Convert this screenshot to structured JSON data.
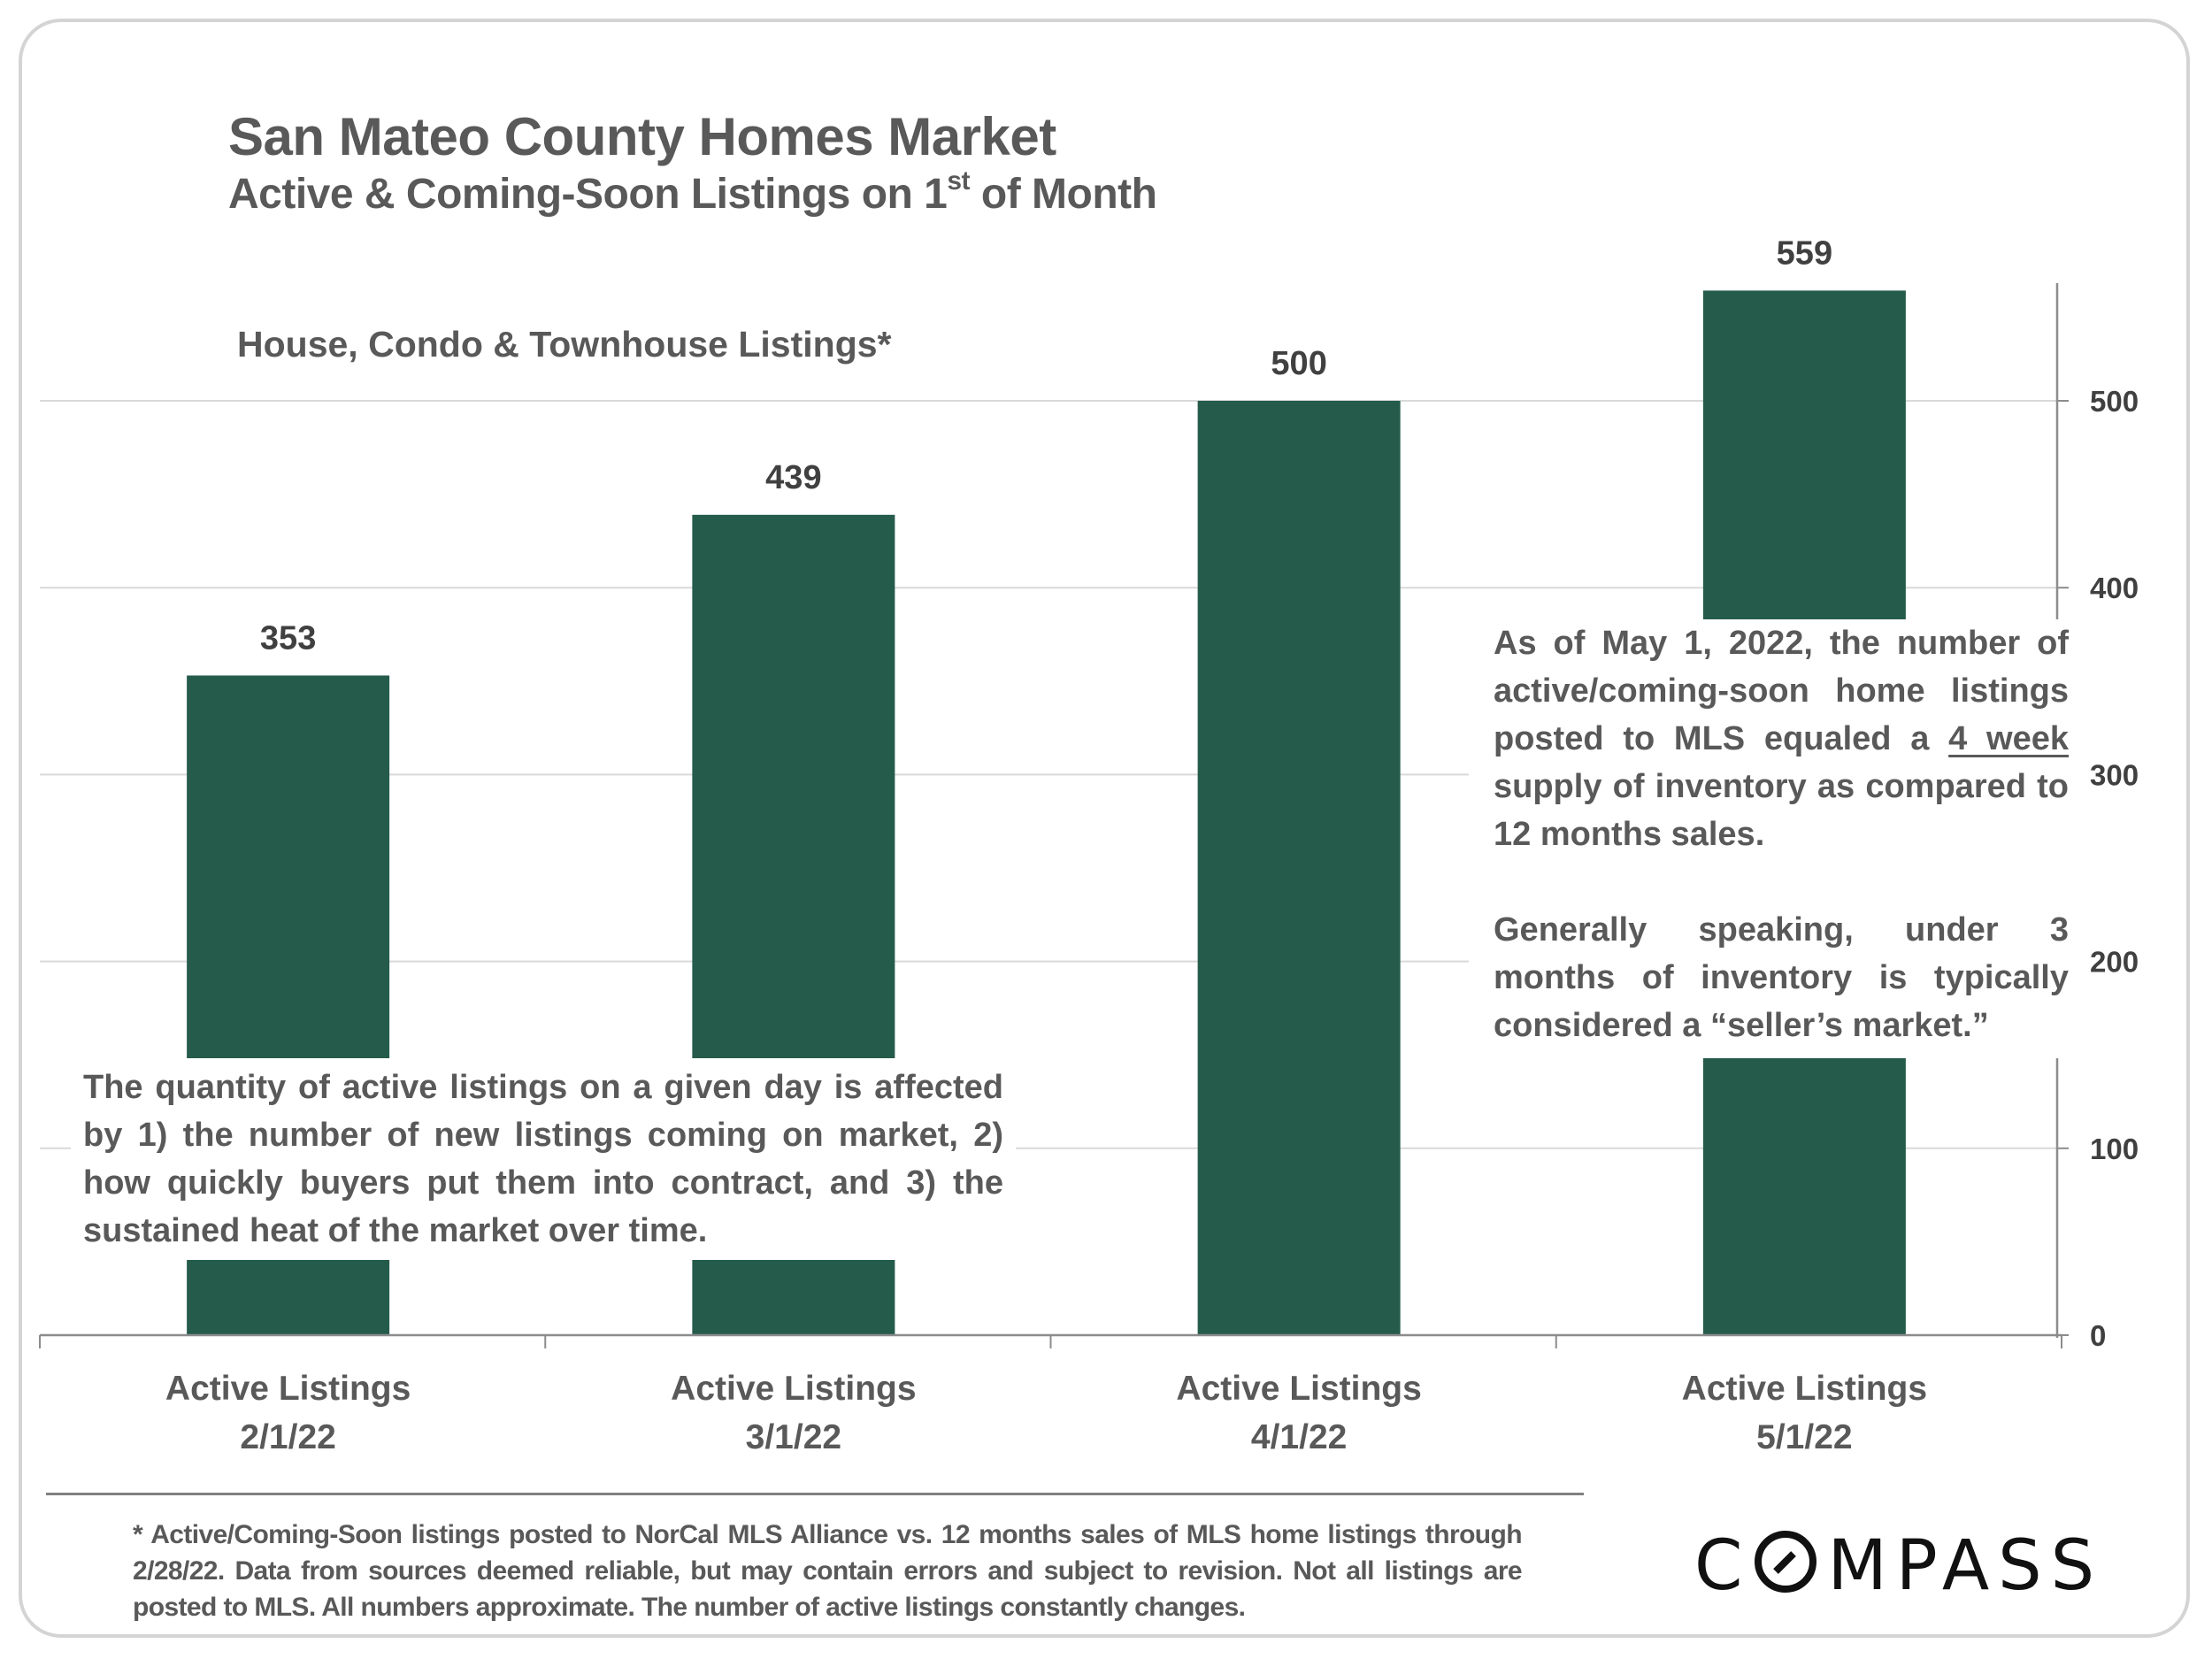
{
  "header": {
    "title": "San Mateo County Homes Market",
    "subtitle_prefix": "Active & Coming-Soon Listings on 1",
    "subtitle_sup": "st",
    "subtitle_suffix": " of Month"
  },
  "series_label": "House, Condo & Townhouse Listings*",
  "annotations": {
    "left": "The quantity of active listings on a given day is affected by 1) the number of new listings coming on market, 2) how quickly buyers put them into contract, and 3) the sustained heat of the market over time.",
    "right_p1_before": "As of May 1, 2022, the number of active/coming-soon home listings posted to MLS equaled a ",
    "right_p1_underlined": "4 week",
    "right_p1_after": " supply of inventory as compared to 12 months sales.",
    "right_p2": "Generally speaking, under 3 months of inventory is typically considered a “seller’s market.”"
  },
  "footnote": "* Active/Coming-Soon listings posted to NorCal MLS Alliance vs. 12 months sales of MLS home listings through 2/28/22.  Data from sources deemed reliable, but may contain errors and subject to revision.  Not all listings are posted to MLS. All numbers approximate. The number of active listings constantly changes.",
  "logo": {
    "text_c": "C",
    "text_rest": "MPASS"
  },
  "colors": {
    "bar": "#255b4b",
    "text": "#595959",
    "value_label": "#404040",
    "grid": "#d9d9d9",
    "axis": "#8c8c8c"
  },
  "chart_data": {
    "type": "bar",
    "title": "San Mateo County Homes Market",
    "subtitle": "Active & Coming-Soon Listings on 1st of Month",
    "series_name": "House, Condo & Townhouse Listings*",
    "categories": [
      [
        "Active Listings",
        "2/1/22"
      ],
      [
        "Active Listings",
        "3/1/22"
      ],
      [
        "Active Listings",
        "4/1/22"
      ],
      [
        "Active Listings",
        "5/1/22"
      ]
    ],
    "values": [
      353,
      439,
      500,
      559
    ],
    "data_labels": [
      "353",
      "439",
      "500",
      "559"
    ],
    "xlabel": "",
    "ylabel": "",
    "ylim": [
      0,
      560
    ],
    "yticks": [
      0,
      100,
      200,
      300,
      400,
      500
    ],
    "yaxis_position": "right",
    "grid": true,
    "legend": "none"
  }
}
